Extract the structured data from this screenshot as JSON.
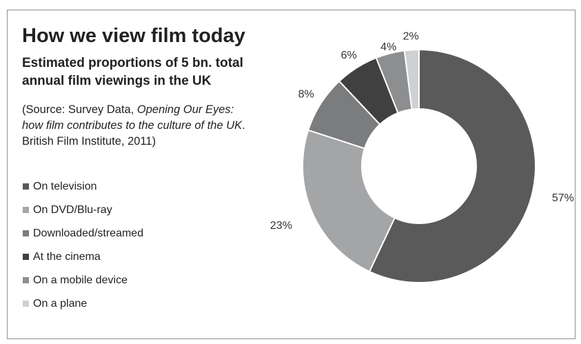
{
  "header": {
    "title": "How we view film today",
    "subtitle": "Estimated proportions of 5 bn. total annual film viewings in the UK",
    "source_prefix": "(Source: Survey Data, ",
    "source_italic": "Opening Our Eyes: how film contributes to the culture of the UK",
    "source_suffix": ". British Film Institute, 2011)"
  },
  "chart_data": {
    "type": "pie",
    "variant": "donut",
    "unit": "%",
    "categories": [
      "On television",
      "On DVD/Blu-ray",
      "Downloaded/streamed",
      "At the cinema",
      "On a mobile device",
      "On a plane"
    ],
    "values": [
      57,
      23,
      8,
      6,
      4,
      2
    ],
    "labels": [
      "57%",
      "23%",
      "8%",
      "6%",
      "4%",
      "2%"
    ],
    "colors": [
      "#5a5a5b",
      "#a4a5a7",
      "#7b7c7e",
      "#404041",
      "#8d8e90",
      "#cfd0d2"
    ],
    "legend_placement": "left",
    "start": "12 o'clock, clockwise"
  }
}
